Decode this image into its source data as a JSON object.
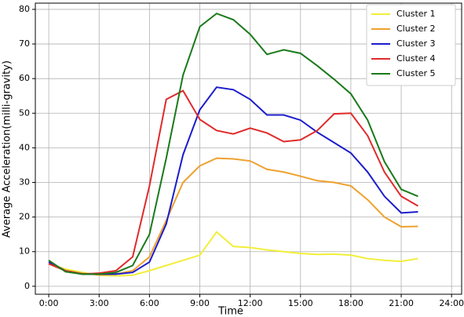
{
  "chart_data": {
    "type": "line",
    "x_label": "Time",
    "y_label": "Average Acceleration(milli-gravity)",
    "x": [
      0,
      1,
      2,
      3,
      4,
      5,
      6,
      7,
      8,
      9,
      10,
      11,
      12,
      13,
      14,
      15,
      16,
      17,
      18,
      19,
      20,
      21,
      22
    ],
    "series": [
      {
        "name": "Cluster 1",
        "color": "#f2ee3a",
        "values": [
          6.5,
          5,
          4,
          3.2,
          3,
          3.2,
          4.5,
          6,
          7.5,
          9,
          15.7,
          11.5,
          11.2,
          10.5,
          10,
          9.5,
          9.2,
          9.3,
          9,
          8,
          7.5,
          7.2,
          8
        ]
      },
      {
        "name": "Cluster 2",
        "color": "#eea12e",
        "values": [
          6.5,
          4.5,
          3.8,
          3.3,
          3.5,
          4.5,
          8.5,
          19,
          30,
          34.8,
          37,
          36.8,
          36.2,
          33.8,
          33,
          31.8,
          30.5,
          30,
          29,
          25,
          20,
          17.2,
          17.3
        ]
      },
      {
        "name": "Cluster 3",
        "color": "#1c1ccc",
        "values": [
          7,
          4.5,
          3.5,
          3.5,
          3.5,
          4,
          7,
          18,
          38,
          51,
          57.5,
          56.8,
          54,
          49.5,
          49.5,
          48,
          44.5,
          41.5,
          38.5,
          33,
          26,
          21.2,
          21.5
        ]
      },
      {
        "name": "Cluster 4",
        "color": "#e02a2a",
        "values": [
          6.5,
          4.5,
          3.5,
          3.8,
          4.5,
          8.5,
          29,
          54,
          56.5,
          48.2,
          45,
          44,
          45.7,
          44.3,
          41.8,
          42.3,
          45,
          49.8,
          50,
          43.5,
          33,
          26,
          23.2
        ]
      },
      {
        "name": "Cluster 5",
        "color": "#1a7a1a",
        "values": [
          7.5,
          4.2,
          3.5,
          3.5,
          4,
          6,
          15,
          37,
          61,
          75,
          78.8,
          77,
          72.8,
          67,
          68.3,
          67.3,
          63.7,
          59.8,
          55.6,
          48,
          36,
          28,
          26
        ]
      }
    ],
    "xlim": [
      -0.8,
      24.6
    ],
    "ylim": [
      -2.3,
      81.8
    ],
    "xticks": [
      {
        "value": 0,
        "label": "0:00"
      },
      {
        "value": 3,
        "label": "3:00"
      },
      {
        "value": 6,
        "label": "6:00"
      },
      {
        "value": 9,
        "label": "9:00"
      },
      {
        "value": 12,
        "label": "12:00"
      },
      {
        "value": 15,
        "label": "15:00"
      },
      {
        "value": 18,
        "label": "18:00"
      },
      {
        "value": 21,
        "label": "21:00"
      },
      {
        "value": 24,
        "label": "24:00"
      }
    ],
    "yticks": [
      0,
      10,
      20,
      30,
      40,
      50,
      60,
      70,
      80
    ],
    "grid": true,
    "legend": "upper right"
  }
}
